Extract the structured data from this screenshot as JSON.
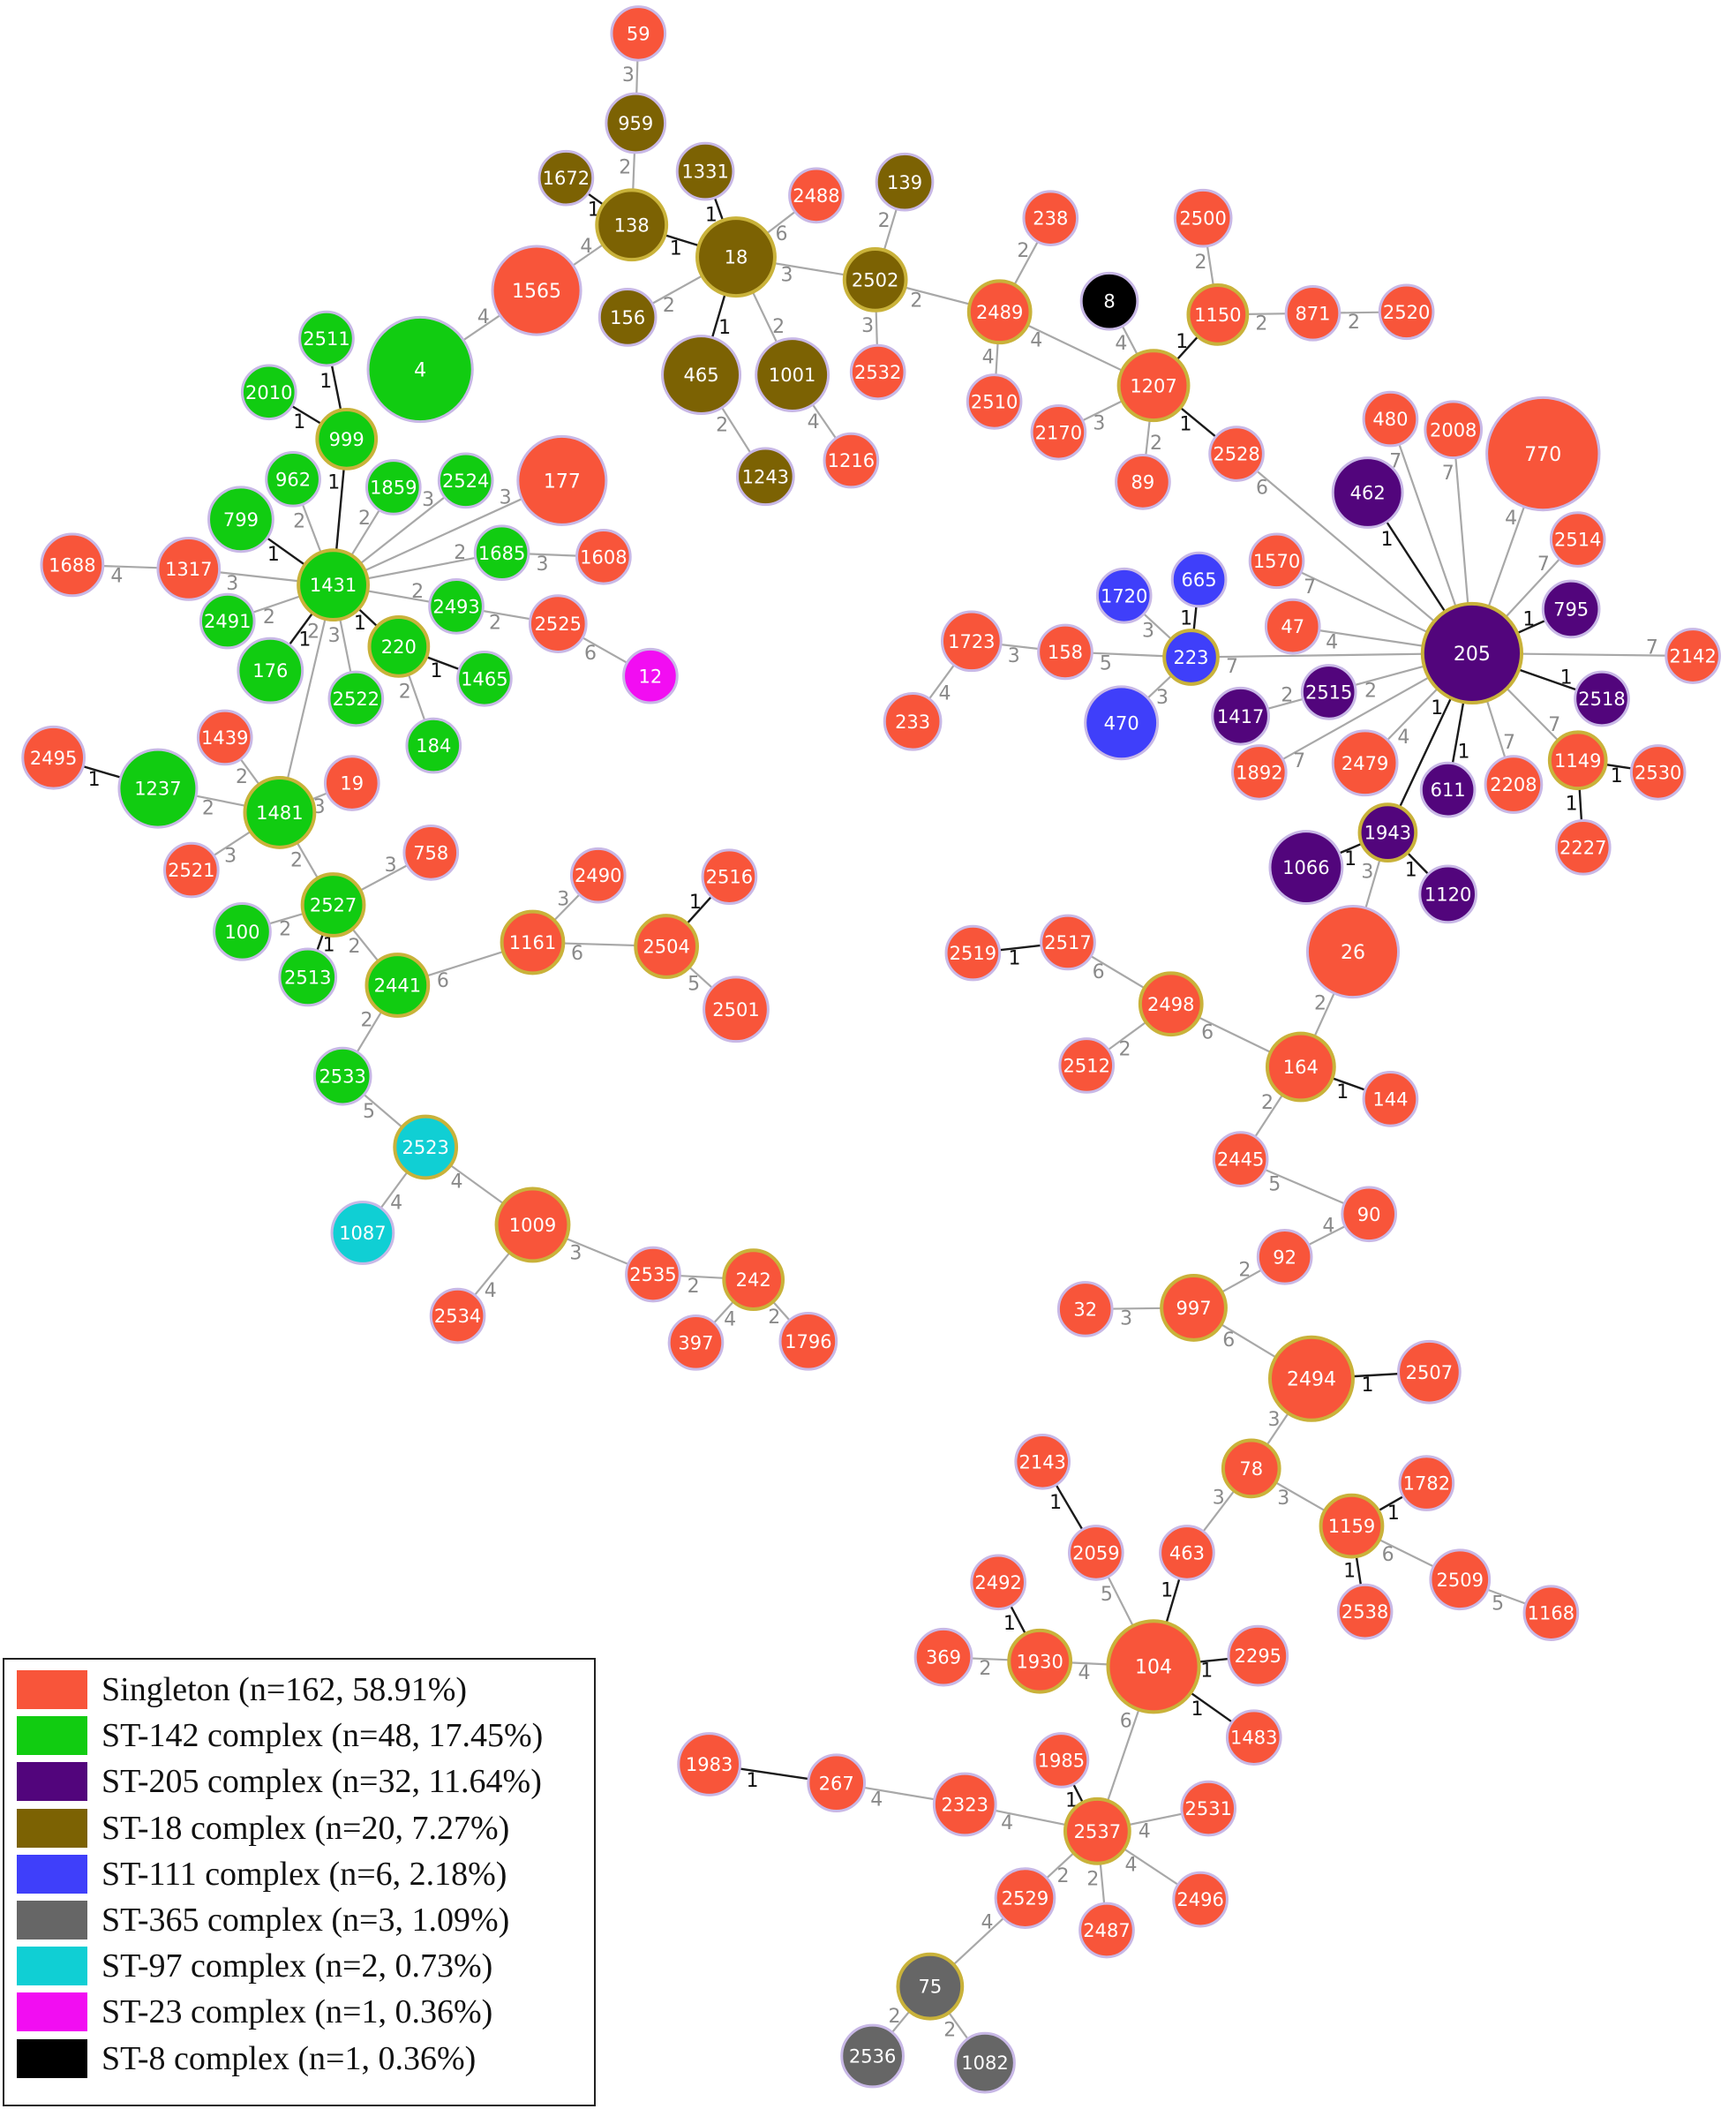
{
  "figure": {
    "legend": [
      {
        "label": "Singleton (n=162, 58.91%)",
        "color": "#f8553a",
        "group": "S"
      },
      {
        "label": "ST-142 complex (n=48, 17.45%)",
        "color": "#11cc11",
        "group": "G"
      },
      {
        "label": "ST-205 complex (n=32, 11.64%)",
        "color": "#52057c",
        "group": "P"
      },
      {
        "label": "ST-18 complex (n=20, 7.27%)",
        "color": "#7c6203",
        "group": "O"
      },
      {
        "label": "ST-111 complex (n=6, 2.18%)",
        "color": "#3f3ffa",
        "group": "B"
      },
      {
        "label": "ST-365 complex (n=3, 1.09%)",
        "color": "#666666",
        "group": "Y"
      },
      {
        "label": "ST-97 complex (n=2, 0.73%)",
        "color": "#10cfd4",
        "group": "C"
      },
      {
        "label": "ST-23 complex (n=1, 0.36%)",
        "color": "#f20df2",
        "group": "M"
      },
      {
        "label": "ST-8 complex (n=1, 0.36%)",
        "color": "#000000",
        "group": "K"
      }
    ],
    "nodes": [
      {
        "id": "59",
        "g": "S"
      },
      {
        "id": "959",
        "g": "O"
      },
      {
        "id": "1672",
        "g": "O"
      },
      {
        "id": "138",
        "g": "O",
        "founder": true
      },
      {
        "id": "1331",
        "g": "O"
      },
      {
        "id": "18",
        "g": "O",
        "founder": true
      },
      {
        "id": "2488",
        "g": "S"
      },
      {
        "id": "139",
        "g": "O"
      },
      {
        "id": "2502",
        "g": "O",
        "founder": true
      },
      {
        "id": "156",
        "g": "O"
      },
      {
        "id": "465",
        "g": "O"
      },
      {
        "id": "1001",
        "g": "O"
      },
      {
        "id": "1243",
        "g": "O"
      },
      {
        "id": "1216",
        "g": "S"
      },
      {
        "id": "2532",
        "g": "S"
      },
      {
        "id": "1565",
        "g": "S"
      },
      {
        "id": "238",
        "g": "S"
      },
      {
        "id": "2489",
        "g": "S",
        "founder": true
      },
      {
        "id": "2510",
        "g": "S"
      },
      {
        "id": "8",
        "g": "K"
      },
      {
        "id": "2500",
        "g": "S"
      },
      {
        "id": "1150",
        "g": "S",
        "founder": true
      },
      {
        "id": "871",
        "g": "S"
      },
      {
        "id": "2520",
        "g": "S"
      },
      {
        "id": "1207",
        "g": "S",
        "founder": true
      },
      {
        "id": "2170",
        "g": "S"
      },
      {
        "id": "89",
        "g": "S"
      },
      {
        "id": "2528",
        "g": "S"
      },
      {
        "id": "4",
        "g": "G"
      },
      {
        "id": "2511",
        "g": "G"
      },
      {
        "id": "2010",
        "g": "G"
      },
      {
        "id": "999",
        "g": "G",
        "founder": true
      },
      {
        "id": "962",
        "g": "G"
      },
      {
        "id": "1859",
        "g": "G"
      },
      {
        "id": "2524",
        "g": "G"
      },
      {
        "id": "177",
        "g": "S"
      },
      {
        "id": "799",
        "g": "G"
      },
      {
        "id": "1688",
        "g": "S"
      },
      {
        "id": "1317",
        "g": "S"
      },
      {
        "id": "1431",
        "g": "G",
        "founder": true
      },
      {
        "id": "1685",
        "g": "G"
      },
      {
        "id": "1608",
        "g": "S"
      },
      {
        "id": "2491",
        "g": "G"
      },
      {
        "id": "2493",
        "g": "G"
      },
      {
        "id": "2525",
        "g": "S"
      },
      {
        "id": "12",
        "g": "M"
      },
      {
        "id": "176",
        "g": "G"
      },
      {
        "id": "220",
        "g": "G",
        "founder": true
      },
      {
        "id": "1465",
        "g": "G"
      },
      {
        "id": "2522",
        "g": "G"
      },
      {
        "id": "184",
        "g": "G"
      },
      {
        "id": "1439",
        "g": "S"
      },
      {
        "id": "2495",
        "g": "S"
      },
      {
        "id": "1237",
        "g": "G"
      },
      {
        "id": "1481",
        "g": "G",
        "founder": true
      },
      {
        "id": "19",
        "g": "S"
      },
      {
        "id": "2521",
        "g": "S"
      },
      {
        "id": "758",
        "g": "S"
      },
      {
        "id": "2527",
        "g": "G",
        "founder": true
      },
      {
        "id": "100",
        "g": "G"
      },
      {
        "id": "2513",
        "g": "G"
      },
      {
        "id": "2441",
        "g": "G",
        "founder": true
      },
      {
        "id": "2533",
        "g": "G"
      },
      {
        "id": "2523",
        "g": "C",
        "founder": true
      },
      {
        "id": "1087",
        "g": "C"
      },
      {
        "id": "1009",
        "g": "S",
        "founder": true
      },
      {
        "id": "2534",
        "g": "S"
      },
      {
        "id": "2535",
        "g": "S"
      },
      {
        "id": "242",
        "g": "S",
        "founder": true
      },
      {
        "id": "397",
        "g": "S"
      },
      {
        "id": "1796",
        "g": "S"
      },
      {
        "id": "1161",
        "g": "S",
        "founder": true
      },
      {
        "id": "2490",
        "g": "S"
      },
      {
        "id": "2504",
        "g": "S",
        "founder": true
      },
      {
        "id": "2516",
        "g": "S"
      },
      {
        "id": "2501",
        "g": "S"
      },
      {
        "id": "480",
        "g": "S"
      },
      {
        "id": "2008",
        "g": "S"
      },
      {
        "id": "770",
        "g": "S"
      },
      {
        "id": "462",
        "g": "P"
      },
      {
        "id": "2514",
        "g": "S"
      },
      {
        "id": "1570",
        "g": "S"
      },
      {
        "id": "1720",
        "g": "B"
      },
      {
        "id": "665",
        "g": "B"
      },
      {
        "id": "795",
        "g": "P"
      },
      {
        "id": "47",
        "g": "S"
      },
      {
        "id": "205",
        "g": "P",
        "founder": true
      },
      {
        "id": "1723",
        "g": "S"
      },
      {
        "id": "158",
        "g": "S"
      },
      {
        "id": "223",
        "g": "B",
        "founder": true
      },
      {
        "id": "2142",
        "g": "S"
      },
      {
        "id": "2515",
        "g": "P"
      },
      {
        "id": "2518",
        "g": "P"
      },
      {
        "id": "233",
        "g": "S"
      },
      {
        "id": "470",
        "g": "B"
      },
      {
        "id": "1417",
        "g": "P"
      },
      {
        "id": "1892",
        "g": "S"
      },
      {
        "id": "2479",
        "g": "S"
      },
      {
        "id": "611",
        "g": "P"
      },
      {
        "id": "2208",
        "g": "S"
      },
      {
        "id": "1149",
        "g": "S",
        "founder": true
      },
      {
        "id": "2530",
        "g": "S"
      },
      {
        "id": "1943",
        "g": "P",
        "founder": true
      },
      {
        "id": "2227",
        "g": "S"
      },
      {
        "id": "1066",
        "g": "P"
      },
      {
        "id": "1120",
        "g": "P"
      },
      {
        "id": "26",
        "g": "S"
      },
      {
        "id": "2519",
        "g": "S"
      },
      {
        "id": "2517",
        "g": "S"
      },
      {
        "id": "2498",
        "g": "S",
        "founder": true
      },
      {
        "id": "2512",
        "g": "S"
      },
      {
        "id": "164",
        "g": "S",
        "founder": true
      },
      {
        "id": "144",
        "g": "S"
      },
      {
        "id": "2445",
        "g": "S"
      },
      {
        "id": "90",
        "g": "S"
      },
      {
        "id": "92",
        "g": "S"
      },
      {
        "id": "32",
        "g": "S"
      },
      {
        "id": "997",
        "g": "S",
        "founder": true
      },
      {
        "id": "2494",
        "g": "S",
        "founder": true
      },
      {
        "id": "2507",
        "g": "S"
      },
      {
        "id": "78",
        "g": "S",
        "founder": true
      },
      {
        "id": "2143",
        "g": "S"
      },
      {
        "id": "1782",
        "g": "S"
      },
      {
        "id": "1159",
        "g": "S",
        "founder": true
      },
      {
        "id": "463",
        "g": "S"
      },
      {
        "id": "2059",
        "g": "S"
      },
      {
        "id": "2538",
        "g": "S"
      },
      {
        "id": "2509",
        "g": "S"
      },
      {
        "id": "1168",
        "g": "S"
      },
      {
        "id": "2492",
        "g": "S"
      },
      {
        "id": "369",
        "g": "S"
      },
      {
        "id": "1930",
        "g": "S",
        "founder": true
      },
      {
        "id": "104",
        "g": "S",
        "founder": true
      },
      {
        "id": "2295",
        "g": "S"
      },
      {
        "id": "1483",
        "g": "S"
      },
      {
        "id": "1983",
        "g": "S"
      },
      {
        "id": "267",
        "g": "S"
      },
      {
        "id": "1985",
        "g": "S"
      },
      {
        "id": "2323",
        "g": "S"
      },
      {
        "id": "2537",
        "g": "S",
        "founder": true
      },
      {
        "id": "2531",
        "g": "S"
      },
      {
        "id": "2529",
        "g": "S"
      },
      {
        "id": "2487",
        "g": "S"
      },
      {
        "id": "2496",
        "g": "S"
      },
      {
        "id": "75",
        "g": "Y",
        "founder": true
      },
      {
        "id": "2536",
        "g": "Y"
      },
      {
        "id": "1082",
        "g": "Y"
      }
    ],
    "edges": [
      [
        "59",
        "959",
        "3"
      ],
      [
        "959",
        "138",
        "2"
      ],
      [
        "1672",
        "138",
        "1"
      ],
      [
        "138",
        "18",
        "1"
      ],
      [
        "1331",
        "18",
        "1"
      ],
      [
        "138",
        "1565",
        "4"
      ],
      [
        "156",
        "18",
        "2"
      ],
      [
        "465",
        "18",
        "1"
      ],
      [
        "1001",
        "18",
        "2"
      ],
      [
        "18",
        "2488",
        "6"
      ],
      [
        "18",
        "2502",
        "3"
      ],
      [
        "139",
        "2502",
        "2"
      ],
      [
        "2502",
        "2532",
        "3"
      ],
      [
        "465",
        "1243",
        "2"
      ],
      [
        "1001",
        "1216",
        "4"
      ],
      [
        "2502",
        "2489",
        "2"
      ],
      [
        "238",
        "2489",
        "2"
      ],
      [
        "2489",
        "2510",
        "4"
      ],
      [
        "2489",
        "1207",
        "4"
      ],
      [
        "8",
        "1207",
        "4"
      ],
      [
        "2500",
        "1150",
        "2"
      ],
      [
        "1150",
        "871",
        "2"
      ],
      [
        "871",
        "2520",
        "2"
      ],
      [
        "1150",
        "1207",
        "1"
      ],
      [
        "2170",
        "1207",
        "3"
      ],
      [
        "89",
        "1207",
        "2"
      ],
      [
        "1207",
        "2528",
        "1"
      ],
      [
        "1565",
        "4",
        "4"
      ],
      [
        "2511",
        "999",
        "1"
      ],
      [
        "2010",
        "999",
        "1"
      ],
      [
        "999",
        "1431",
        "1"
      ],
      [
        "962",
        "1431",
        "2"
      ],
      [
        "1859",
        "1431",
        "2"
      ],
      [
        "2524",
        "1431",
        "3"
      ],
      [
        "177",
        "1431",
        "3"
      ],
      [
        "799",
        "1431",
        "1"
      ],
      [
        "1688",
        "1317",
        "4"
      ],
      [
        "1317",
        "1431",
        "3"
      ],
      [
        "1685",
        "1431",
        "2"
      ],
      [
        "1685",
        "1608",
        "3"
      ],
      [
        "2491",
        "1431",
        "2"
      ],
      [
        "2493",
        "1431",
        "2"
      ],
      [
        "176",
        "1431",
        "1"
      ],
      [
        "1431",
        "220",
        "1"
      ],
      [
        "1431",
        "2522",
        "3"
      ],
      [
        "2493",
        "2525",
        "2"
      ],
      [
        "2525",
        "12",
        "6"
      ],
      [
        "220",
        "1465",
        "1"
      ],
      [
        "220",
        "184",
        "2"
      ],
      [
        "1431",
        "1481",
        "2"
      ],
      [
        "1439",
        "1481",
        "2"
      ],
      [
        "2495",
        "1237",
        "1"
      ],
      [
        "1237",
        "1481",
        "2"
      ],
      [
        "1481",
        "19",
        "3"
      ],
      [
        "2521",
        "1481",
        "3"
      ],
      [
        "1481",
        "2527",
        "2"
      ],
      [
        "758",
        "2527",
        "3"
      ],
      [
        "100",
        "2527",
        "2"
      ],
      [
        "2513",
        "2527",
        "1"
      ],
      [
        "2527",
        "2441",
        "2"
      ],
      [
        "2441",
        "2533",
        "2"
      ],
      [
        "2533",
        "2523",
        "5"
      ],
      [
        "1087",
        "2523",
        "4"
      ],
      [
        "2523",
        "1009",
        "4"
      ],
      [
        "2534",
        "1009",
        "4"
      ],
      [
        "1009",
        "2535",
        "3"
      ],
      [
        "2535",
        "242",
        "2"
      ],
      [
        "397",
        "242",
        "4"
      ],
      [
        "242",
        "1796",
        "2"
      ],
      [
        "2441",
        "1161",
        "6"
      ],
      [
        "2490",
        "1161",
        "3"
      ],
      [
        "1161",
        "2504",
        "6"
      ],
      [
        "2516",
        "2504",
        "1"
      ],
      [
        "2504",
        "2501",
        "5"
      ],
      [
        "480",
        "205",
        "7"
      ],
      [
        "2008",
        "205",
        "7"
      ],
      [
        "770",
        "205",
        "4"
      ],
      [
        "462",
        "205",
        "1"
      ],
      [
        "2514",
        "205",
        "7"
      ],
      [
        "1570",
        "205",
        "7"
      ],
      [
        "795",
        "205",
        "1"
      ],
      [
        "47",
        "205",
        "4"
      ],
      [
        "2142",
        "205",
        "7"
      ],
      [
        "2515",
        "205",
        "2"
      ],
      [
        "2518",
        "205",
        "1"
      ],
      [
        "2528",
        "205",
        "6"
      ],
      [
        "1892",
        "205",
        "7"
      ],
      [
        "2479",
        "205",
        "4"
      ],
      [
        "611",
        "205",
        "1"
      ],
      [
        "2208",
        "205",
        "7"
      ],
      [
        "1149",
        "205",
        "7"
      ],
      [
        "205",
        "1943",
        "1"
      ],
      [
        "2515",
        "1417",
        "2"
      ],
      [
        "1720",
        "223",
        "3"
      ],
      [
        "665",
        "223",
        "1"
      ],
      [
        "470",
        "223",
        "3"
      ],
      [
        "223",
        "205",
        "7"
      ],
      [
        "158",
        "223",
        "5"
      ],
      [
        "1723",
        "158",
        "3"
      ],
      [
        "233",
        "1723",
        "4"
      ],
      [
        "1149",
        "2530",
        "1"
      ],
      [
        "1149",
        "2227",
        "1"
      ],
      [
        "1066",
        "1943",
        "1"
      ],
      [
        "1943",
        "1120",
        "1"
      ],
      [
        "1943",
        "26",
        "3"
      ],
      [
        "26",
        "164",
        "2"
      ],
      [
        "2519",
        "2517",
        "1"
      ],
      [
        "2517",
        "2498",
        "6"
      ],
      [
        "2512",
        "2498",
        "2"
      ],
      [
        "2498",
        "164",
        "6"
      ],
      [
        "164",
        "144",
        "1"
      ],
      [
        "164",
        "2445",
        "2"
      ],
      [
        "2445",
        "90",
        "5"
      ],
      [
        "90",
        "92",
        "4"
      ],
      [
        "92",
        "997",
        "2"
      ],
      [
        "32",
        "997",
        "3"
      ],
      [
        "997",
        "2494",
        "6"
      ],
      [
        "2494",
        "2507",
        "1"
      ],
      [
        "2494",
        "78",
        "3"
      ],
      [
        "78",
        "1159",
        "3"
      ],
      [
        "1159",
        "1782",
        "1"
      ],
      [
        "1159",
        "2538",
        "1"
      ],
      [
        "1159",
        "2509",
        "6"
      ],
      [
        "2509",
        "1168",
        "5"
      ],
      [
        "78",
        "463",
        "3"
      ],
      [
        "463",
        "104",
        "1"
      ],
      [
        "2143",
        "2059",
        "1"
      ],
      [
        "2059",
        "104",
        "5"
      ],
      [
        "2492",
        "1930",
        "1"
      ],
      [
        "369",
        "1930",
        "2"
      ],
      [
        "1930",
        "104",
        "4"
      ],
      [
        "104",
        "2295",
        "1"
      ],
      [
        "104",
        "1483",
        "1"
      ],
      [
        "104",
        "2537",
        "6"
      ],
      [
        "1983",
        "267",
        "1"
      ],
      [
        "267",
        "2323",
        "4"
      ],
      [
        "2323",
        "2537",
        "4"
      ],
      [
        "1985",
        "2537",
        "1"
      ],
      [
        "2537",
        "2531",
        "4"
      ],
      [
        "2529",
        "2537",
        "2"
      ],
      [
        "2537",
        "2487",
        "2"
      ],
      [
        "2537",
        "2496",
        "4"
      ],
      [
        "2529",
        "75",
        "4"
      ],
      [
        "75",
        "2536",
        "2"
      ],
      [
        "75",
        "1082",
        "2"
      ]
    ]
  }
}
